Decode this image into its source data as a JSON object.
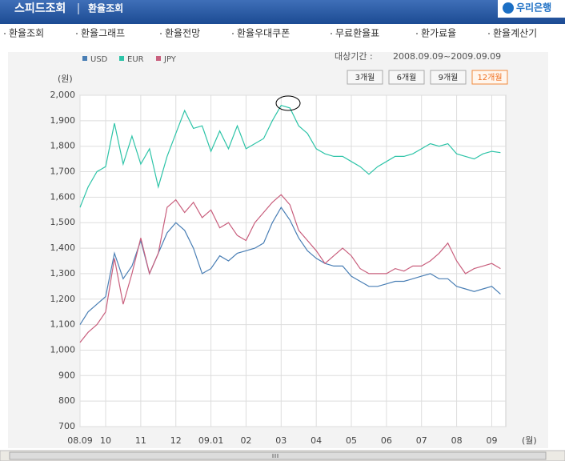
{
  "header": {
    "title": "스피드조회",
    "subtitle": "환율조회",
    "logo": "우리은행"
  },
  "nav": [
    "환율조회",
    "환율그래프",
    "환율전망",
    "환율우대쿠폰",
    "무료환율표",
    "환가료율",
    "환율계산기"
  ],
  "period": {
    "label": "대상기간 :",
    "value": "2008.09.09~2009.09.09"
  },
  "buttons": [
    "3개월",
    "6개월",
    "9개월",
    "12개월"
  ],
  "chart_data": {
    "type": "line",
    "y_label": "(원)",
    "x_label": "(월)",
    "grid": true,
    "x": [
      0.27,
      0.5,
      0.75,
      1,
      1.25,
      1.5,
      1.75,
      2,
      2.25,
      2.5,
      2.75,
      3,
      3.25,
      3.5,
      3.75,
      4,
      4.25,
      4.5,
      4.75,
      5,
      5.25,
      5.5,
      5.75,
      6,
      6.25,
      6.5,
      6.75,
      7,
      7.25,
      7.5,
      7.75,
      8,
      8.25,
      8.5,
      8.75,
      9,
      9.25,
      9.5,
      9.75,
      10,
      10.25,
      10.5,
      10.75,
      11,
      11.25,
      11.5,
      11.75,
      12,
      12.25
    ],
    "xlim": [
      0.27,
      12.4
    ],
    "xticks": [
      {
        "value": 0.27,
        "label": "08.09"
      },
      {
        "value": 1,
        "label": "10"
      },
      {
        "value": 2,
        "label": "11"
      },
      {
        "value": 3,
        "label": "12"
      },
      {
        "value": 4,
        "label": "09.01"
      },
      {
        "value": 5,
        "label": "02"
      },
      {
        "value": 6,
        "label": "03"
      },
      {
        "value": 7,
        "label": "04"
      },
      {
        "value": 8,
        "label": "05"
      },
      {
        "value": 9,
        "label": "06"
      },
      {
        "value": 10,
        "label": "07"
      },
      {
        "value": 11,
        "label": "08"
      },
      {
        "value": 12,
        "label": "09"
      }
    ],
    "ylim": [
      700,
      2000
    ],
    "yticks": [
      700,
      800,
      900,
      {
        "value": 1000,
        "label": "1,000"
      },
      {
        "value": 1100,
        "label": "1,100"
      },
      {
        "value": 1200,
        "label": "1,200"
      },
      {
        "value": 1300,
        "label": "1,300"
      },
      {
        "value": 1400,
        "label": "1,400"
      },
      {
        "value": 1500,
        "label": "1,500"
      },
      {
        "value": 1600,
        "label": "1,600"
      },
      {
        "value": 1700,
        "label": "1,700"
      },
      {
        "value": 1800,
        "label": "1,800"
      },
      {
        "value": 1900,
        "label": "1,900"
      },
      {
        "value": 2000,
        "label": "2,000"
      }
    ],
    "series": [
      {
        "name": "USD",
        "color": "#4a7fb5",
        "values": [
          1100,
          1150,
          1180,
          1210,
          1380,
          1280,
          1330,
          1430,
          1300,
          1380,
          1460,
          1500,
          1470,
          1400,
          1300,
          1320,
          1370,
          1350,
          1380,
          1390,
          1400,
          1420,
          1500,
          1560,
          1510,
          1440,
          1390,
          1360,
          1340,
          1330,
          1330,
          1290,
          1270,
          1250,
          1250,
          1260,
          1270,
          1270,
          1280,
          1290,
          1300,
          1280,
          1280,
          1250,
          1240,
          1230,
          1240,
          1250,
          1220
        ]
      },
      {
        "name": "EUR",
        "color": "#2ec4a8",
        "values": [
          1560,
          1640,
          1700,
          1720,
          1890,
          1730,
          1840,
          1730,
          1790,
          1640,
          1760,
          1850,
          1940,
          1870,
          1880,
          1780,
          1860,
          1790,
          1880,
          1790,
          1810,
          1830,
          1900,
          1960,
          1950,
          1880,
          1850,
          1790,
          1770,
          1760,
          1760,
          1740,
          1720,
          1690,
          1720,
          1740,
          1760,
          1760,
          1770,
          1790,
          1810,
          1800,
          1810,
          1770,
          1760,
          1750,
          1770,
          1780,
          1775
        ]
      },
      {
        "name": "JPY",
        "color": "#c9607e",
        "values": [
          1030,
          1070,
          1100,
          1150,
          1360,
          1180,
          1300,
          1440,
          1300,
          1380,
          1560,
          1590,
          1540,
          1580,
          1520,
          1550,
          1480,
          1500,
          1450,
          1430,
          1500,
          1540,
          1580,
          1610,
          1570,
          1470,
          1430,
          1390,
          1340,
          1370,
          1400,
          1370,
          1320,
          1300,
          1300,
          1300,
          1320,
          1310,
          1330,
          1330,
          1350,
          1380,
          1420,
          1350,
          1300,
          1320,
          1330,
          1340,
          1320
        ]
      }
    ]
  }
}
